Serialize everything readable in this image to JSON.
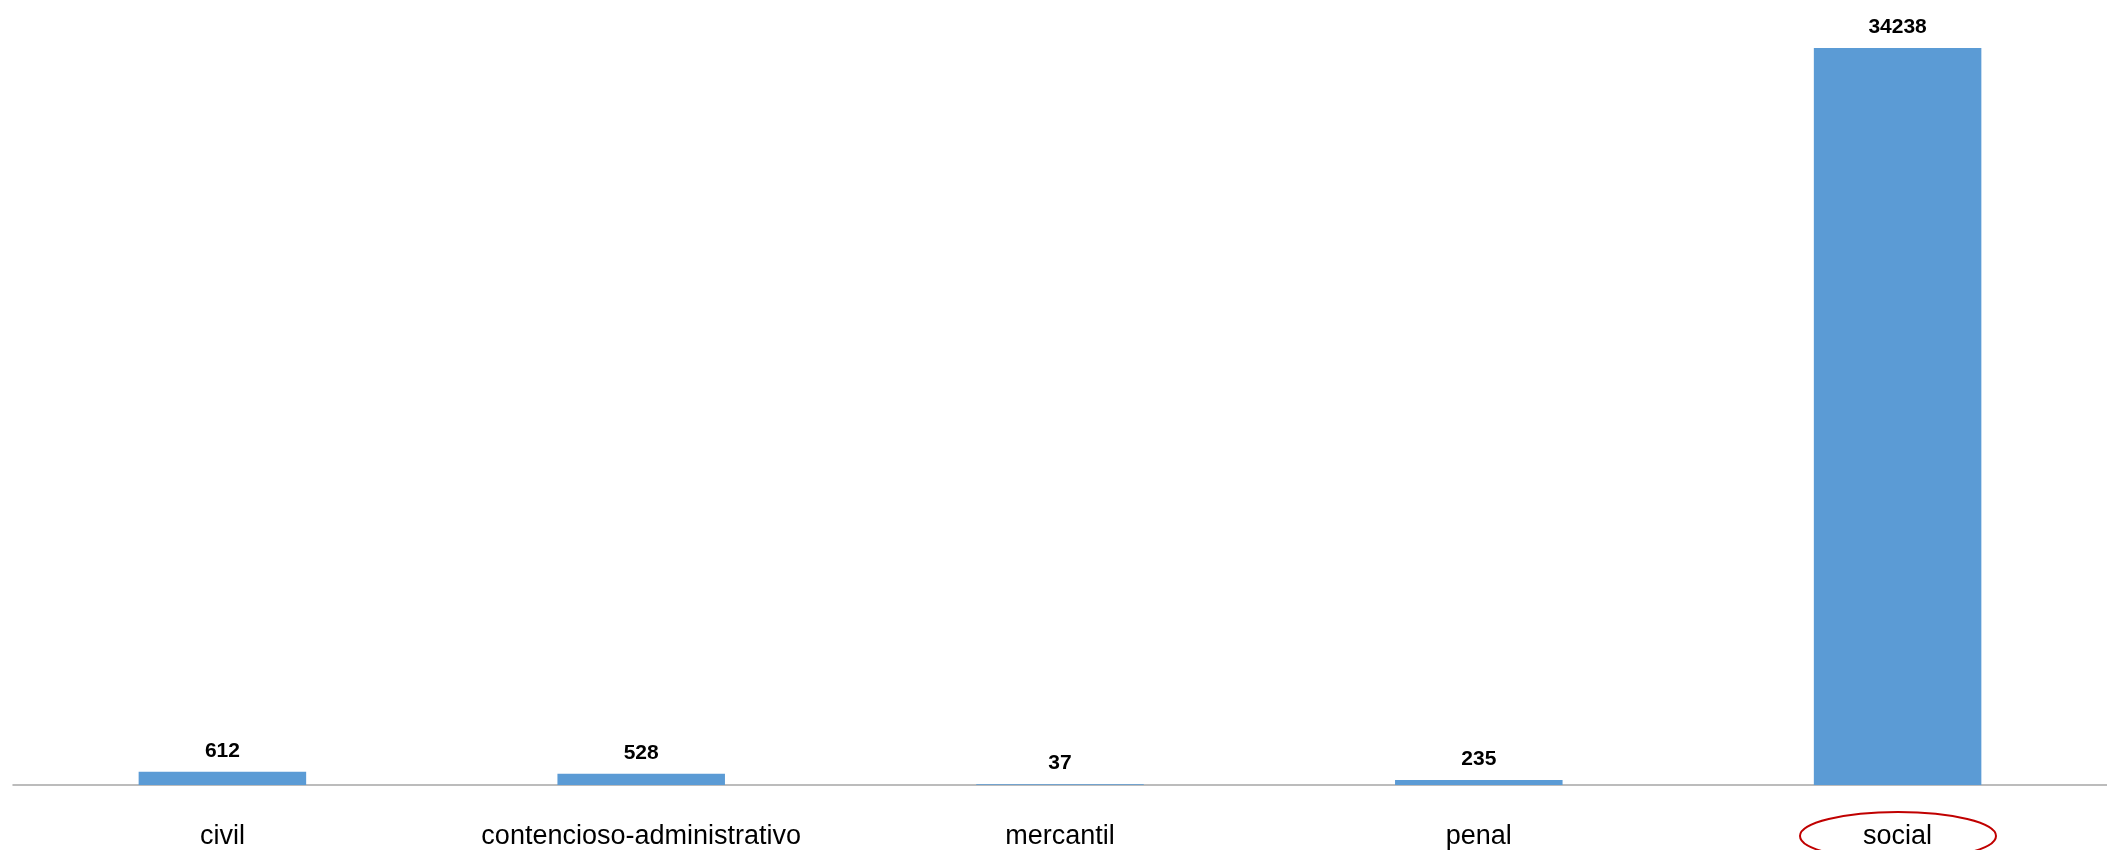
{
  "chart_data": {
    "type": "bar",
    "categories": [
      "civil",
      "contencioso-administrativo",
      "mercantil",
      "penal",
      "social"
    ],
    "values": [
      612,
      528,
      37,
      235,
      34238
    ],
    "color": "#5b9bd5",
    "data_labels": true
  }
}
